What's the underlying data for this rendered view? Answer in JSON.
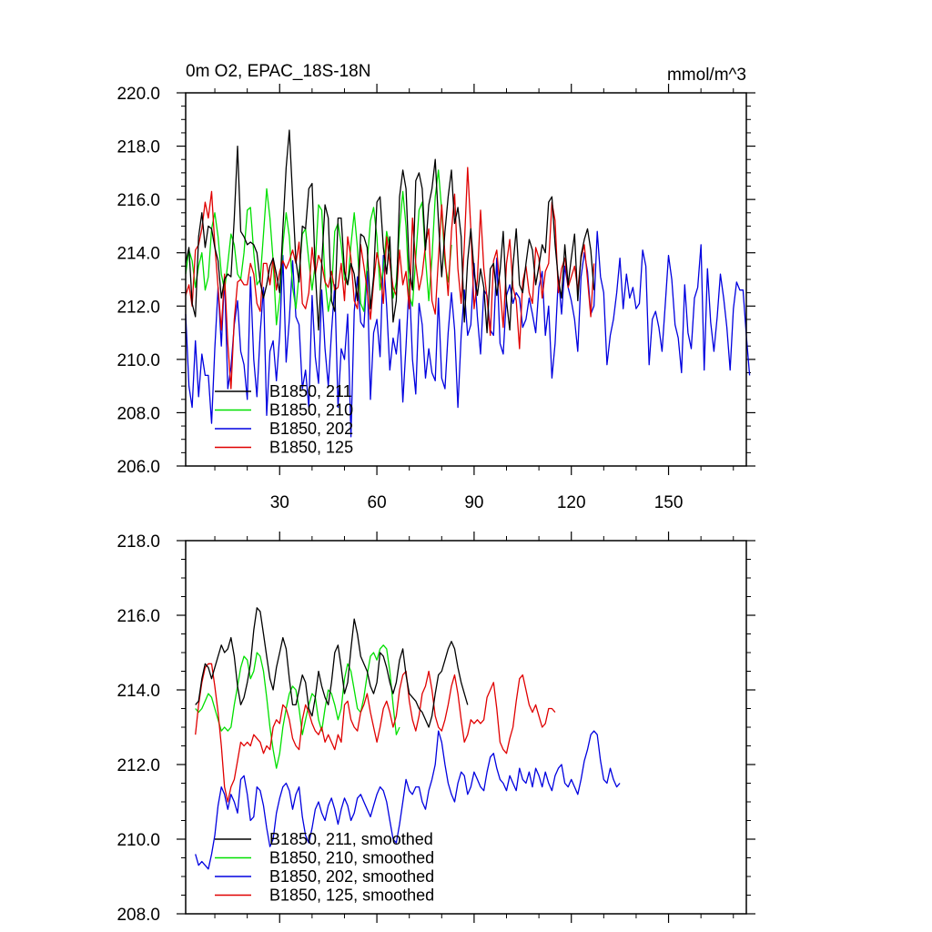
{
  "colors": {
    "B1850_211": "#000000",
    "B1850_210": "#00e000",
    "B1850_202": "#0000e0",
    "B1850_125": "#e00000"
  },
  "chart_data": [
    {
      "type": "line",
      "title_left": "0m O2, EPAC_18S-18N",
      "title_right": "mmol/m^3",
      "xlim": [
        1,
        174
      ],
      "ylim": [
        206.0,
        220.0
      ],
      "xticks": [
        30,
        60,
        90,
        120,
        150
      ],
      "xtick_labels": [
        "30",
        "60",
        "90",
        "120",
        "150"
      ],
      "yticks": [
        206,
        208,
        210,
        212,
        214,
        216,
        218,
        220
      ],
      "ytick_labels": [
        "206.0",
        "208.0",
        "210.0",
        "212.0",
        "214.0",
        "216.0",
        "218.0",
        "220.0"
      ],
      "legend_position": "bottom-left",
      "series": [
        {
          "key": "B1850_211",
          "name": "B1850, 211",
          "start": 1,
          "values": [
            213.6,
            214.2,
            212.1,
            211.6,
            214.6,
            215.5,
            214.2,
            215.0,
            214.9,
            214.2,
            213.7,
            212.3,
            213.0,
            213.2,
            213.1,
            215.3,
            218.0,
            214.8,
            214.6,
            214.3,
            214.4,
            214.3,
            214.0,
            212.9,
            212.3,
            212.8,
            213.5,
            213.8,
            213.2,
            212.5,
            214.9,
            217.2,
            218.6,
            216.1,
            213.7,
            212.9,
            215.0,
            214.9,
            216.4,
            216.6,
            213.3,
            211.1,
            213.6,
            215.8,
            215.3,
            212.2,
            211.8,
            215.3,
            215.3,
            213.3,
            212.8,
            213.6,
            213.2,
            212.2,
            214.7,
            214.6,
            214.2,
            211.9,
            213.1,
            215.9,
            216.1,
            214.2,
            213.2,
            214.6,
            211.4,
            212.2,
            216.1,
            217.1,
            216.4,
            213.4,
            212.6,
            216.7,
            217.0,
            216.4,
            214.1,
            215.8,
            216.4,
            217.5,
            215.2,
            213.1,
            214.8,
            216.1,
            217.1,
            215.1,
            215.7,
            214.6,
            211.4,
            213.7,
            214.9,
            213.3,
            212.4,
            213.4,
            212.7,
            211.0,
            213.4,
            213.6,
            212.4,
            213.3,
            214.8,
            212.2,
            211.1,
            213.5,
            214.9,
            212.8,
            212.5,
            213.6,
            214.5,
            214.1,
            212.8,
            213.5,
            214.3,
            214.0,
            215.9,
            216.1,
            214.3,
            213.0,
            212.3,
            214.3,
            212.8,
            213.8,
            214.7,
            212.2,
            213.9,
            214.5,
            214.9,
            214.1,
            212.6
          ]
        },
        {
          "key": "B1850_210",
          "name": "B1850, 210",
          "start": 1,
          "values": [
            213.2,
            214.1,
            213.7,
            212.7,
            213.5,
            214.0,
            212.6,
            213.1,
            214.9,
            215.5,
            214.6,
            213.2,
            212.6,
            213.6,
            214.7,
            214.3,
            213.2,
            213.0,
            214.0,
            215.6,
            215.7,
            214.0,
            212.8,
            213.0,
            214.7,
            216.4,
            215.3,
            213.7,
            211.3,
            212.3,
            214.3,
            215.5,
            214.6,
            212.7,
            211.9,
            213.2,
            214.7,
            214.9,
            213.7,
            212.6,
            213.6,
            215.8,
            215.6,
            213.0,
            211.8,
            212.5,
            214.8,
            215.1,
            214.3,
            213.0,
            212.8,
            214.3,
            215.5,
            214.2,
            212.1,
            211.8,
            213.6,
            215.2,
            215.7,
            214.6,
            212.6,
            213.4,
            214.8,
            214.2,
            212.3,
            212.9,
            214.9,
            216.3,
            215.0,
            212.4,
            212.0,
            213.8,
            215.6,
            215.9,
            213.8,
            212.2,
            213.8,
            216.1,
            217.1,
            215.6,
            213.6,
            212.9,
            214.3
          ]
        },
        {
          "key": "B1850_202",
          "name": "B1850, 202",
          "start": 1,
          "values": [
            211.7,
            209.0,
            208.2,
            210.7,
            208.6,
            210.2,
            209.4,
            209.4,
            207.6,
            210.4,
            212.7,
            210.5,
            213.1,
            208.9,
            209.7,
            211.3,
            212.2,
            210.3,
            209.8,
            208.5,
            213.1,
            210.0,
            208.6,
            211.0,
            212.7,
            207.9,
            210.3,
            210.7,
            209.2,
            210.9,
            213.9,
            209.9,
            211.5,
            213.7,
            211.6,
            211.3,
            208.9,
            209.6,
            208.2,
            212.4,
            210.1,
            209.1,
            212.6,
            210.4,
            209.0,
            211.0,
            212.8,
            208.2,
            210.4,
            210.0,
            211.7,
            207.1,
            211.8,
            213.1,
            211.4,
            211.2,
            213.3,
            208.5,
            211.0,
            211.5,
            210.1,
            213.9,
            212.0,
            209.6,
            210.8,
            210.2,
            211.5,
            208.4,
            210.5,
            213.0,
            210.0,
            208.7,
            212.1,
            211.3,
            209.3,
            210.4,
            209.5,
            209.2,
            212.3,
            209.3,
            208.9,
            211.0,
            212.5,
            211.1,
            208.2,
            210.9,
            212.6,
            210.9,
            211.3,
            213.6,
            211.6,
            210.2,
            212.6,
            212.4,
            211.1,
            210.9,
            213.8,
            210.6,
            210.2,
            212.4,
            212.8,
            212.1,
            212.5,
            212.3,
            211.2,
            211.5,
            212.3,
            211.7,
            211.0,
            212.7,
            213.3,
            210.9,
            212.0,
            209.3,
            210.6,
            213.1,
            211.7,
            213.5,
            212.7,
            212.2,
            211.5,
            210.3,
            213.1,
            214.0,
            213.3,
            211.7,
            212.0,
            214.8,
            213.1,
            212.5,
            209.8,
            210.9,
            211.5,
            212.5,
            213.8,
            211.9,
            213.2,
            212.3,
            212.7,
            211.9,
            212.1,
            214.1,
            213.5,
            209.8,
            211.5,
            211.8,
            211.2,
            210.3,
            212.1,
            213.9,
            213.0,
            211.3,
            210.8,
            209.5,
            212.8,
            211.0,
            210.4,
            212.3,
            212.7,
            214.3,
            209.6,
            213.4,
            211.4,
            210.3,
            211.6,
            213.2,
            212.3,
            211.2,
            209.6,
            211.9,
            212.9,
            212.6,
            212.6,
            210.9,
            209.4
          ]
        },
        {
          "key": "B1850_125",
          "name": "B1850, 125",
          "start": 1,
          "values": [
            212.4,
            212.8,
            212.0,
            214.1,
            214.3,
            214.9,
            215.9,
            215.3,
            216.3,
            214.3,
            212.7,
            211.1,
            213.2,
            210.6,
            208.9,
            211.5,
            212.9,
            213.0,
            212.8,
            212.8,
            213.6,
            213.2,
            212.1,
            211.8,
            213.6,
            213.6,
            212.8,
            213.8,
            212.6,
            213.3,
            213.7,
            213.4,
            213.7,
            214.1,
            213.6,
            214.4,
            212.1,
            211.9,
            212.5,
            214.2,
            213.2,
            213.9,
            213.6,
            212.9,
            212.7,
            213.3,
            212.6,
            212.7,
            213.6,
            212.2,
            214.6,
            213.8,
            212.2,
            211.9,
            214.3,
            213.5,
            212.6,
            211.5,
            212.9,
            214.0,
            213.4,
            212.1,
            214.6,
            213.6,
            212.7,
            212.4,
            214.1,
            212.8,
            213.3,
            211.9,
            215.3,
            213.6,
            212.6,
            213.2,
            214.3,
            214.9,
            212.2,
            211.7,
            213.8,
            215.8,
            213.9,
            212.4,
            214.8,
            216.2,
            213.4,
            212.1,
            214.3,
            217.2,
            214.9,
            211.9,
            213.0,
            215.6,
            213.4,
            212.3,
            210.9,
            213.7,
            214.1,
            212.7,
            211.2,
            213.6,
            214.5,
            212.7,
            212.2,
            210.4,
            212.9,
            213.5,
            212.5,
            212.1,
            214.2,
            213.8,
            212.3,
            213.3,
            213.6,
            215.9,
            215.2,
            212.5,
            213.4,
            213.8,
            212.7,
            213.1,
            213.5,
            212.6,
            213.8,
            214.3,
            213.0,
            211.6,
            213.6
          ]
        }
      ]
    },
    {
      "type": "line",
      "xlim": [
        1,
        174
      ],
      "ylim": [
        208.0,
        218.0
      ],
      "xticks": [
        30,
        60,
        90,
        120,
        150
      ],
      "yticks": [
        208,
        210,
        212,
        214,
        216,
        218
      ],
      "ytick_labels": [
        "208.0",
        "210.0",
        "212.0",
        "214.0",
        "216.0",
        "218.0"
      ],
      "legend_position": "bottom-left",
      "series": [
        {
          "key": "B1850_211",
          "name": "B1850, 211, smoothed",
          "start": 4,
          "values": [
            213.6,
            213.7,
            214.3,
            214.7,
            214.6,
            214.3,
            214.6,
            214.9,
            215.2,
            215.0,
            215.1,
            215.4,
            214.9,
            214.1,
            213.6,
            213.8,
            214.2,
            214.7,
            215.6,
            216.2,
            216.1,
            215.5,
            214.9,
            214.3,
            214.0,
            214.6,
            215.0,
            215.4,
            215.1,
            214.3,
            213.6,
            213.6,
            214.0,
            214.4,
            214.2,
            213.5,
            213.3,
            213.8,
            214.5,
            214.1,
            213.8,
            213.6,
            214.2,
            215.0,
            215.2,
            214.6,
            213.9,
            214.2,
            215.1,
            215.9,
            215.5,
            214.9,
            214.7,
            214.5,
            214.1,
            213.9,
            214.2,
            215.0,
            214.9,
            214.6,
            214.2,
            213.9,
            214.2,
            214.8,
            215.1,
            214.4,
            213.9,
            213.8,
            213.7,
            213.5,
            213.4,
            213.2,
            213.0,
            213.3,
            213.9,
            214.4,
            214.5,
            214.8,
            215.1,
            215.3,
            215.1,
            214.6,
            214.2,
            213.9,
            213.6
          ]
        },
        {
          "key": "B1850_210",
          "name": "B1850, 210, smoothed",
          "start": 4,
          "values": [
            213.5,
            213.4,
            213.5,
            213.7,
            213.9,
            213.8,
            213.5,
            213.2,
            212.9,
            213.0,
            212.9,
            213.0,
            213.6,
            214.1,
            214.6,
            214.9,
            214.8,
            214.3,
            214.5,
            215.0,
            214.9,
            214.5,
            213.8,
            213.0,
            212.4,
            211.9,
            212.3,
            213.0,
            213.5,
            213.9,
            214.1,
            214.0,
            213.5,
            212.8,
            213.2,
            213.6,
            213.9,
            213.8,
            213.2,
            212.9,
            213.5,
            214.0,
            213.9,
            213.6,
            213.2,
            213.5,
            214.3,
            214.7,
            214.5,
            214.0,
            213.5,
            213.4,
            213.8,
            214.4,
            214.9,
            215.0,
            214.8,
            215.1,
            215.2,
            215.1,
            214.5,
            213.6,
            212.8,
            213.0
          ]
        },
        {
          "key": "B1850_202",
          "name": "B1850, 202, smoothed",
          "start": 4,
          "values": [
            209.6,
            209.3,
            209.4,
            209.3,
            209.2,
            209.6,
            210.1,
            210.9,
            211.4,
            211.2,
            210.8,
            211.2,
            211.0,
            210.7,
            211.6,
            211.7,
            211.2,
            210.5,
            210.6,
            211.4,
            211.3,
            210.9,
            210.3,
            209.8,
            210.0,
            210.7,
            211.1,
            211.4,
            211.5,
            211.3,
            210.8,
            211.2,
            211.4,
            210.6,
            210.1,
            209.9,
            210.3,
            210.8,
            211.0,
            210.7,
            210.5,
            210.9,
            211.1,
            210.8,
            210.4,
            210.8,
            211.1,
            210.9,
            210.5,
            210.7,
            211.1,
            211.2,
            211.0,
            210.8,
            210.6,
            210.9,
            211.2,
            211.4,
            211.3,
            211.0,
            210.5,
            210.0,
            209.9,
            210.4,
            211.0,
            211.6,
            211.3,
            211.2,
            211.4,
            211.4,
            211.0,
            210.8,
            211.3,
            211.6,
            212.0,
            212.9,
            212.6,
            212.0,
            211.5,
            211.2,
            211.0,
            211.5,
            211.8,
            211.7,
            211.2,
            211.4,
            211.8,
            211.6,
            211.4,
            211.3,
            211.8,
            212.2,
            212.3,
            211.9,
            211.6,
            211.5,
            211.3,
            211.7,
            211.5,
            211.3,
            211.9,
            211.6,
            211.5,
            211.8,
            211.4,
            211.9,
            211.7,
            211.4,
            211.8,
            211.5,
            211.3,
            211.7,
            211.9,
            212.0,
            211.5,
            211.4,
            211.6,
            211.4,
            211.2,
            211.6,
            212.1,
            212.4,
            212.8,
            212.9,
            212.8,
            212.1,
            211.6,
            211.5,
            211.9,
            211.6,
            211.4,
            211.5
          ]
        },
        {
          "key": "B1850_125",
          "name": "B1850, 125, smoothed",
          "start": 4,
          "values": [
            212.8,
            213.6,
            214.2,
            214.6,
            214.7,
            214.7,
            214.1,
            213.4,
            212.5,
            211.4,
            211.0,
            211.4,
            211.6,
            212.1,
            212.6,
            212.5,
            212.6,
            212.5,
            212.8,
            212.7,
            212.6,
            212.3,
            212.5,
            212.4,
            213.0,
            213.2,
            213.1,
            213.6,
            213.5,
            213.2,
            212.7,
            212.5,
            212.4,
            213.2,
            213.6,
            213.4,
            213.1,
            212.9,
            212.8,
            213.0,
            212.6,
            212.8,
            212.6,
            212.4,
            212.8,
            212.6,
            213.6,
            213.7,
            213.2,
            213.0,
            212.9,
            213.4,
            213.6,
            213.9,
            213.4,
            213.0,
            212.6,
            213.0,
            213.5,
            213.7,
            213.4,
            213.0,
            213.3,
            214.0,
            214.4,
            214.5,
            213.7,
            213.2,
            212.9,
            213.3,
            213.9,
            214.1,
            214.5,
            214.0,
            213.3,
            213.0,
            212.9,
            213.2,
            213.6,
            214.1,
            214.4,
            213.9,
            213.2,
            212.6,
            212.8,
            213.2,
            213.1,
            213.2,
            213.1,
            213.2,
            213.8,
            214.0,
            214.2,
            213.5,
            212.6,
            212.4,
            212.3,
            212.7,
            213.0,
            213.7,
            214.3,
            214.4,
            214.0,
            213.6,
            213.4,
            213.6,
            213.3,
            213.0,
            213.1,
            213.5,
            213.5,
            213.4
          ]
        }
      ]
    }
  ]
}
